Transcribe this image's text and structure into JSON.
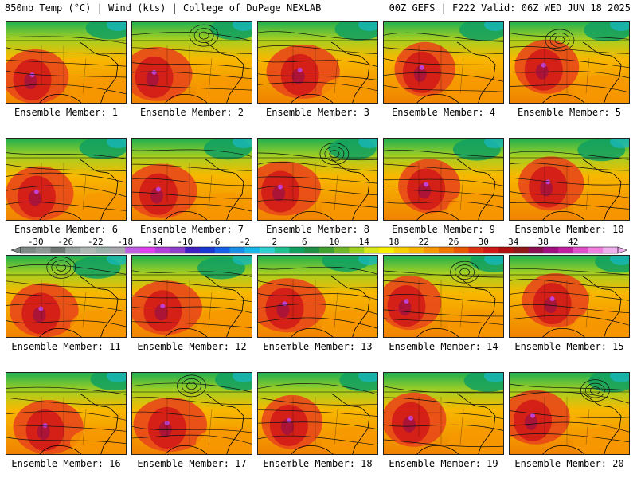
{
  "header": {
    "title_left": "850mb Temp (°C) | Wind (kts) | College of DuPage NEXLAB",
    "title_right": "00Z GEFS | F222 Valid: 06Z WED JUN 18 2025"
  },
  "members": [
    {
      "label": "Ensemble Member: 1"
    },
    {
      "label": "Ensemble Member: 2"
    },
    {
      "label": "Ensemble Member: 3"
    },
    {
      "label": "Ensemble Member: 4"
    },
    {
      "label": "Ensemble Member: 5"
    },
    {
      "label": "Ensemble Member: 6"
    },
    {
      "label": "Ensemble Member: 7"
    },
    {
      "label": "Ensemble Member: 8"
    },
    {
      "label": "Ensemble Member: 9"
    },
    {
      "label": "Ensemble Member: 10"
    },
    {
      "label": "Ensemble Member: 11"
    },
    {
      "label": "Ensemble Member: 12"
    },
    {
      "label": "Ensemble Member: 13"
    },
    {
      "label": "Ensemble Member: 14"
    },
    {
      "label": "Ensemble Member: 15"
    },
    {
      "label": "Ensemble Member: 16"
    },
    {
      "label": "Ensemble Member: 17"
    },
    {
      "label": "Ensemble Member: 18"
    },
    {
      "label": "Ensemble Member: 19"
    },
    {
      "label": "Ensemble Member: 20"
    }
  ],
  "colorbar": {
    "ticks": [
      "-30",
      "-26",
      "-22",
      "-18",
      "-14",
      "-10",
      "-6",
      "-2",
      "2",
      "6",
      "10",
      "14",
      "18",
      "22",
      "26",
      "30",
      "34",
      "38",
      "42"
    ],
    "colors": [
      "#7f8a86",
      "#8f9894",
      "#6f7875",
      "#9aa4a0",
      "#b0b8b4",
      "#9ab0a8",
      "#a8aab0",
      "#c060e0",
      "#e040f0",
      "#b040d8",
      "#9040c8",
      "#4020c0",
      "#1838d0",
      "#1860e8",
      "#1890e8",
      "#18b8e8",
      "#30d0d0",
      "#20c090",
      "#10a060",
      "#209048",
      "#40a030",
      "#70b828",
      "#a0d020",
      "#d8e818",
      "#f8f000",
      "#f8d000",
      "#f8b800",
      "#f89800",
      "#f07800",
      "#e85800",
      "#e03018",
      "#d01818",
      "#b01010",
      "#901818",
      "#881050",
      "#a01080",
      "#c020a0",
      "#e050c8",
      "#f080e0",
      "#f0b0f0"
    ]
  }
}
